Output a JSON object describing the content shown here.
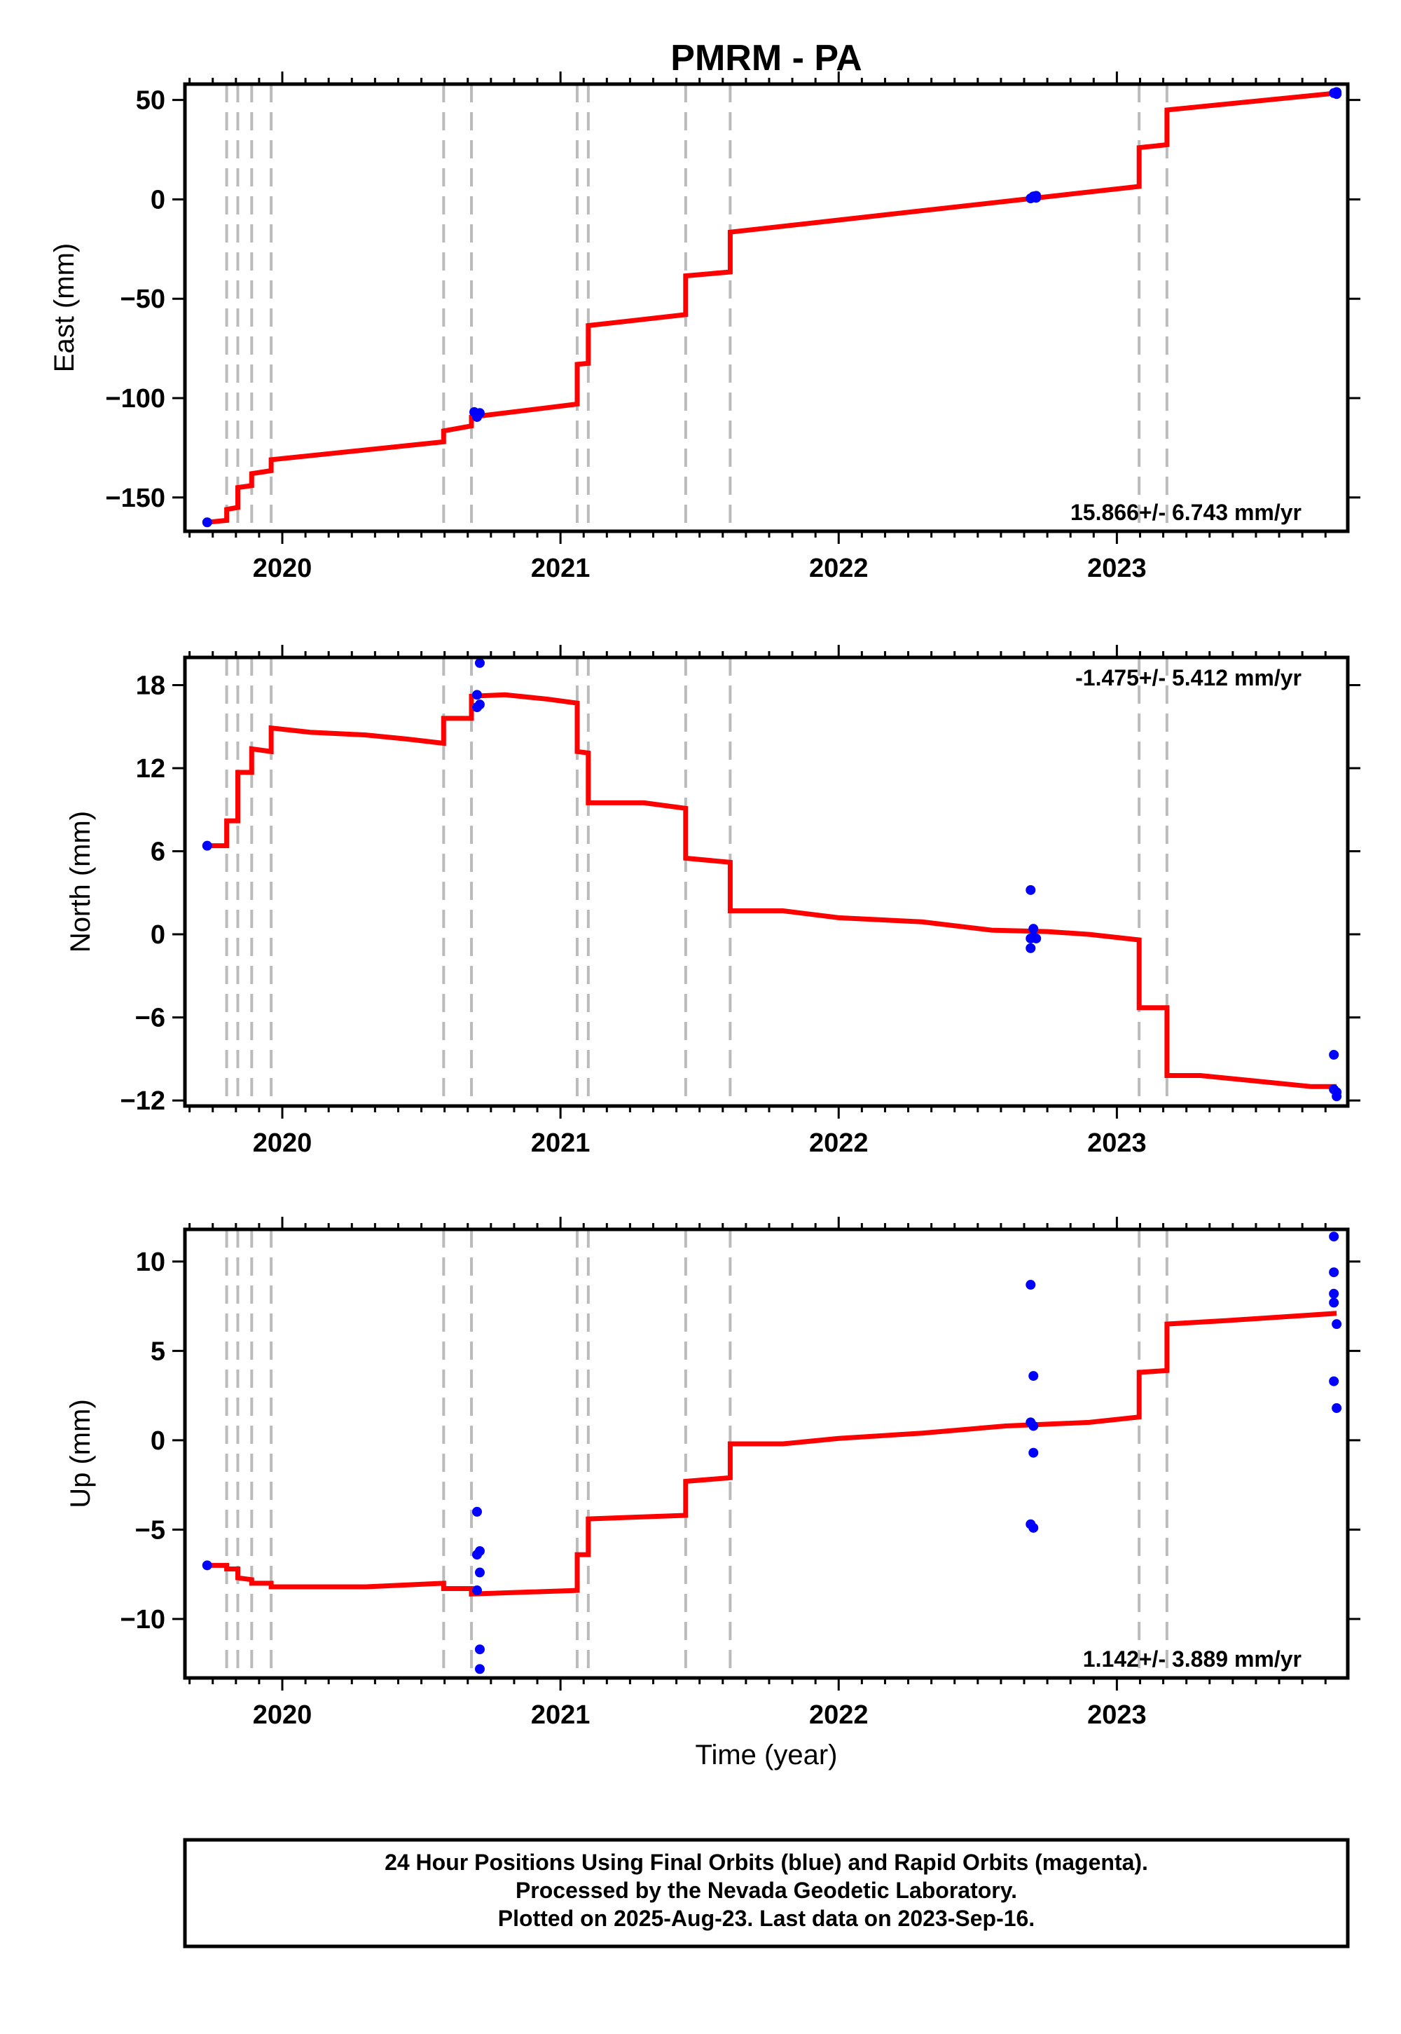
{
  "chart_data": {
    "title": "PMRM - PA",
    "type": "scatter",
    "xlabel": "Time (year)",
    "x_ticks": [
      "2020",
      "2021",
      "2022",
      "2023"
    ],
    "xlim": [
      2019.65,
      2023.83
    ],
    "offset_epochs": [
      2019.8,
      2019.84,
      2019.89,
      2019.96,
      2020.58,
      2020.68,
      2021.06,
      2021.1,
      2021.45,
      2021.61,
      2023.08,
      2023.18
    ],
    "caption": [
      "24 Hour Positions Using Final Orbits (blue) and Rapid Orbits (magenta).",
      "Processed by the Nevada Geodetic Laboratory.",
      "Plotted on 2025-Aug-23. Last data on 2023-Sep-16."
    ],
    "colors": {
      "data": "#0000ff",
      "model": "#ff0000",
      "offsets": "#bbbbbb"
    },
    "panels": [
      {
        "name": "east",
        "ylabel": "East (mm)",
        "ylim": [
          -167,
          58
        ],
        "y_ticks": [
          50,
          0,
          -50,
          -100,
          -150
        ],
        "y_tick_labels": [
          "50",
          "0",
          "−50",
          "−100",
          "−150"
        ],
        "rate": "15.866+/- 6.743 mm/yr",
        "rate_position": "bottom-right",
        "model": [
          [
            2019.73,
            -162.5
          ],
          [
            2019.8,
            -161.5
          ],
          [
            2019.8,
            -156
          ],
          [
            2019.84,
            -155
          ],
          [
            2019.84,
            -145
          ],
          [
            2019.89,
            -144
          ],
          [
            2019.89,
            -138
          ],
          [
            2019.96,
            -136.5
          ],
          [
            2019.96,
            -131
          ],
          [
            2020.58,
            -122
          ],
          [
            2020.58,
            -116.5
          ],
          [
            2020.68,
            -114
          ],
          [
            2020.68,
            -109.5
          ],
          [
            2021.06,
            -103
          ],
          [
            2021.06,
            -83
          ],
          [
            2021.1,
            -82.5
          ],
          [
            2021.1,
            -63.5
          ],
          [
            2021.45,
            -58
          ],
          [
            2021.45,
            -38.5
          ],
          [
            2021.61,
            -36.5
          ],
          [
            2021.61,
            -16.5
          ],
          [
            2023.08,
            6.5
          ],
          [
            2023.08,
            26
          ],
          [
            2023.18,
            27.5
          ],
          [
            2023.18,
            45
          ],
          [
            2023.79,
            53.5
          ]
        ],
        "points": [
          [
            2019.73,
            -162.5
          ],
          [
            2020.69,
            -107
          ],
          [
            2020.7,
            -109.5
          ],
          [
            2020.71,
            -107.5
          ],
          [
            2020.7,
            -108.5
          ],
          [
            2022.69,
            0.5
          ],
          [
            2022.7,
            1.5
          ],
          [
            2022.71,
            0.8
          ],
          [
            2022.7,
            1.0
          ],
          [
            2022.71,
            1.8
          ],
          [
            2023.78,
            53.5
          ],
          [
            2023.79,
            53.0
          ],
          [
            2023.79,
            54.0
          ]
        ]
      },
      {
        "name": "north",
        "ylabel": "North (mm)",
        "ylim": [
          -12.4,
          20
        ],
        "y_ticks": [
          18,
          12,
          6,
          0,
          -6,
          -12
        ],
        "y_tick_labels": [
          "18",
          "12",
          "6",
          "0",
          "−6",
          "−12"
        ],
        "rate": "-1.475+/- 5.412 mm/yr",
        "rate_position": "top-right",
        "model": [
          [
            2019.73,
            6.4
          ],
          [
            2019.8,
            6.4
          ],
          [
            2019.8,
            8.2
          ],
          [
            2019.84,
            8.2
          ],
          [
            2019.84,
            11.7
          ],
          [
            2019.89,
            11.7
          ],
          [
            2019.89,
            13.4
          ],
          [
            2019.96,
            13.2
          ],
          [
            2019.96,
            14.9
          ],
          [
            2020.1,
            14.6
          ],
          [
            2020.3,
            14.4
          ],
          [
            2020.45,
            14.1
          ],
          [
            2020.58,
            13.8
          ],
          [
            2020.58,
            15.6
          ],
          [
            2020.68,
            15.6
          ],
          [
            2020.68,
            17.2
          ],
          [
            2020.8,
            17.3
          ],
          [
            2020.95,
            17.0
          ],
          [
            2021.06,
            16.7
          ],
          [
            2021.06,
            13.2
          ],
          [
            2021.1,
            13.1
          ],
          [
            2021.1,
            9.5
          ],
          [
            2021.3,
            9.5
          ],
          [
            2021.45,
            9.1
          ],
          [
            2021.45,
            5.5
          ],
          [
            2021.61,
            5.2
          ],
          [
            2021.61,
            1.7
          ],
          [
            2021.8,
            1.7
          ],
          [
            2022.0,
            1.2
          ],
          [
            2022.3,
            0.9
          ],
          [
            2022.55,
            0.3
          ],
          [
            2022.75,
            0.2
          ],
          [
            2022.9,
            0.0
          ],
          [
            2023.08,
            -0.4
          ],
          [
            2023.08,
            -5.3
          ],
          [
            2023.18,
            -5.3
          ],
          [
            2023.18,
            -10.2
          ],
          [
            2023.3,
            -10.2
          ],
          [
            2023.5,
            -10.6
          ],
          [
            2023.7,
            -11.0
          ],
          [
            2023.79,
            -11.0
          ]
        ],
        "points": [
          [
            2019.73,
            6.4
          ],
          [
            2020.7,
            17.3
          ],
          [
            2020.71,
            19.6
          ],
          [
            2020.7,
            16.4
          ],
          [
            2020.71,
            16.6
          ],
          [
            2022.69,
            3.2
          ],
          [
            2022.7,
            0.4
          ],
          [
            2022.7,
            -0.2
          ],
          [
            2022.69,
            -0.3
          ],
          [
            2022.71,
            -0.3
          ],
          [
            2022.69,
            -1.0
          ],
          [
            2023.78,
            -8.7
          ],
          [
            2023.78,
            -11.2
          ],
          [
            2023.79,
            -11.4
          ],
          [
            2023.79,
            -11.7
          ]
        ]
      },
      {
        "name": "up",
        "ylabel": "Up (mm)",
        "ylim": [
          -13.3,
          11.8
        ],
        "y_ticks": [
          10,
          5,
          0,
          -5,
          -10
        ],
        "y_tick_labels": [
          "10",
          "5",
          "0",
          "−5",
          "−10"
        ],
        "rate": "1.142+/- 3.889 mm/yr",
        "rate_position": "bottom-right",
        "model": [
          [
            2019.73,
            -7.0
          ],
          [
            2019.8,
            -7.0
          ],
          [
            2019.8,
            -7.2
          ],
          [
            2019.84,
            -7.2
          ],
          [
            2019.84,
            -7.7
          ],
          [
            2019.89,
            -7.8
          ],
          [
            2019.89,
            -8.0
          ],
          [
            2019.96,
            -8.0
          ],
          [
            2019.96,
            -8.2
          ],
          [
            2020.3,
            -8.2
          ],
          [
            2020.58,
            -8.0
          ],
          [
            2020.58,
            -8.3
          ],
          [
            2020.68,
            -8.3
          ],
          [
            2020.68,
            -8.6
          ],
          [
            2021.06,
            -8.4
          ],
          [
            2021.06,
            -6.4
          ],
          [
            2021.1,
            -6.4
          ],
          [
            2021.1,
            -4.4
          ],
          [
            2021.45,
            -4.2
          ],
          [
            2021.45,
            -2.3
          ],
          [
            2021.61,
            -2.1
          ],
          [
            2021.61,
            -0.2
          ],
          [
            2021.8,
            -0.2
          ],
          [
            2022.0,
            0.1
          ],
          [
            2022.3,
            0.4
          ],
          [
            2022.6,
            0.8
          ],
          [
            2022.9,
            1.0
          ],
          [
            2023.08,
            1.3
          ],
          [
            2023.08,
            3.8
          ],
          [
            2023.18,
            3.9
          ],
          [
            2023.18,
            6.5
          ],
          [
            2023.4,
            6.7
          ],
          [
            2023.79,
            7.1
          ]
        ],
        "points": [
          [
            2019.73,
            -7.0
          ],
          [
            2020.7,
            -4.0
          ],
          [
            2020.71,
            -6.2
          ],
          [
            2020.7,
            -6.4
          ],
          [
            2020.71,
            -7.4
          ],
          [
            2020.7,
            -8.4
          ],
          [
            2020.71,
            -11.7
          ],
          [
            2020.71,
            -12.8
          ],
          [
            2022.69,
            8.7
          ],
          [
            2022.7,
            3.6
          ],
          [
            2022.69,
            1.0
          ],
          [
            2022.7,
            0.8
          ],
          [
            2022.7,
            -0.7
          ],
          [
            2022.69,
            -4.7
          ],
          [
            2022.7,
            -4.9
          ],
          [
            2023.78,
            11.4
          ],
          [
            2023.78,
            9.4
          ],
          [
            2023.78,
            8.2
          ],
          [
            2023.78,
            7.7
          ],
          [
            2023.79,
            6.5
          ],
          [
            2023.78,
            3.3
          ],
          [
            2023.79,
            1.8
          ]
        ]
      }
    ]
  }
}
